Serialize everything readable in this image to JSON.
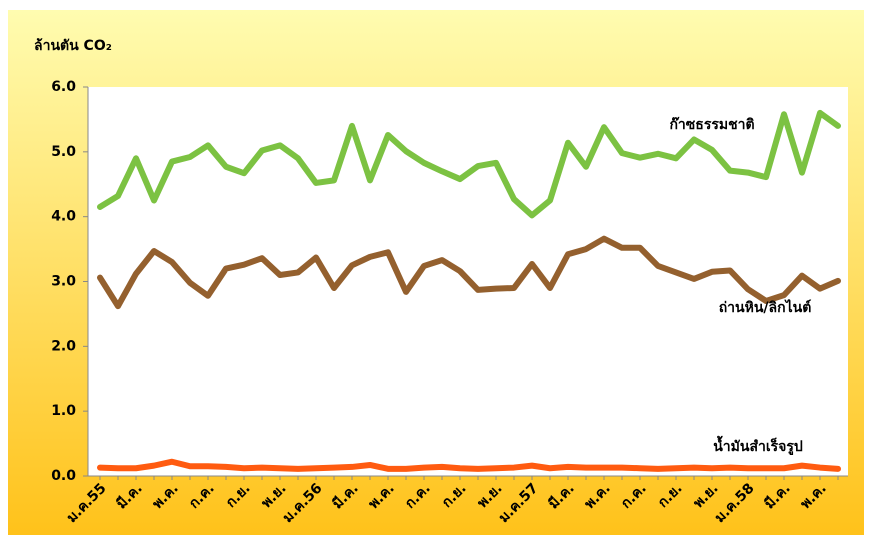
{
  "chart_data": {
    "type": "line",
    "y_label": "ล้านตัน CO₂",
    "categories": [
      "ม.ค.55",
      null,
      "มี.ค.",
      null,
      "พ.ค.",
      null,
      "ก.ค.",
      null,
      "ก.ย.",
      null,
      "พ.ย.",
      null,
      "ม.ค.56",
      null,
      "มี.ค.",
      null,
      "พ.ค.",
      null,
      "ก.ค.",
      null,
      "ก.ย.",
      null,
      "พ.ย.",
      null,
      "ม.ค.57",
      null,
      "มี.ค.",
      null,
      "พ.ค.",
      null,
      "ก.ค.",
      null,
      "ก.ย.",
      null,
      "พ.ย.",
      null,
      "ม.ค.58",
      null,
      "มี.ค.",
      null,
      "พ.ค.",
      null
    ],
    "series": [
      {
        "name": "ก๊าซธรรมชาติ",
        "color": "#7cc242",
        "values": [
          4.15,
          4.32,
          4.9,
          4.25,
          4.85,
          4.92,
          5.1,
          4.77,
          4.67,
          5.02,
          5.1,
          4.9,
          4.52,
          4.56,
          5.4,
          4.56,
          5.26,
          5.01,
          4.83,
          4.7,
          4.58,
          4.78,
          4.83,
          4.27,
          4.02,
          4.25,
          5.14,
          4.77,
          5.38,
          4.98,
          4.91,
          4.97,
          4.9,
          5.19,
          5.03,
          4.71,
          4.68,
          4.61,
          5.58,
          4.68,
          5.6,
          5.4
        ]
      },
      {
        "name": "ถ่านหิน/ลิกไนต์",
        "color": "#94602e",
        "values": [
          3.06,
          2.62,
          3.12,
          3.47,
          3.3,
          2.98,
          2.78,
          3.2,
          3.26,
          3.36,
          3.1,
          3.14,
          3.37,
          2.9,
          3.25,
          3.38,
          3.45,
          2.84,
          3.24,
          3.33,
          3.16,
          2.87,
          2.89,
          2.9,
          3.27,
          2.9,
          3.42,
          3.5,
          3.66,
          3.52,
          3.52,
          3.24,
          3.14,
          3.04,
          3.15,
          3.17,
          2.88,
          2.7,
          2.79,
          3.09,
          2.89,
          3.01
        ]
      },
      {
        "name": "น้ำมันสำเร็จรูป",
        "color": "#ff5b10",
        "values": [
          0.13,
          0.12,
          0.12,
          0.16,
          0.22,
          0.15,
          0.15,
          0.14,
          0.12,
          0.13,
          0.12,
          0.11,
          0.12,
          0.13,
          0.14,
          0.17,
          0.11,
          0.11,
          0.13,
          0.14,
          0.12,
          0.11,
          0.12,
          0.13,
          0.16,
          0.12,
          0.14,
          0.13,
          0.13,
          0.13,
          0.12,
          0.11,
          0.12,
          0.13,
          0.12,
          0.13,
          0.12,
          0.12,
          0.12,
          0.16,
          0.13,
          0.11
        ]
      }
    ],
    "ylim": [
      0,
      6
    ],
    "yticks": [
      {
        "value": 0,
        "label": "0.0"
      },
      {
        "value": 1,
        "label": "1.0"
      },
      {
        "value": 2,
        "label": "2.0"
      },
      {
        "value": 3,
        "label": "3.0"
      },
      {
        "value": 4,
        "label": "4.0"
      },
      {
        "value": 5,
        "label": "5.0"
      },
      {
        "value": 6,
        "label": "6.0"
      }
    ],
    "grid": false
  }
}
